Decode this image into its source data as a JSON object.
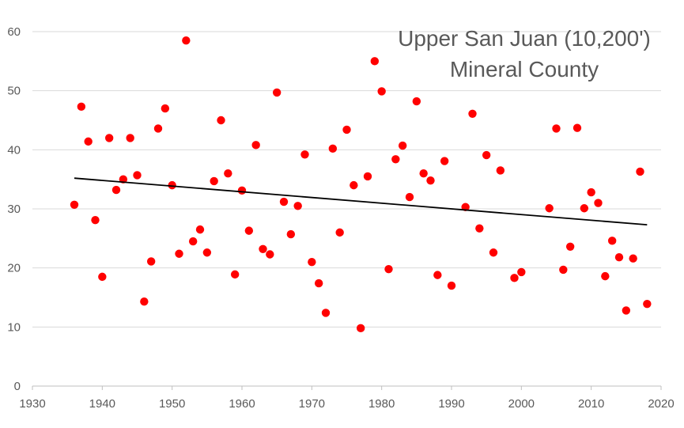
{
  "chart_data": {
    "type": "scatter",
    "title_lines": [
      "Upper San Juan (10,200')",
      "Mineral County"
    ],
    "xlabel": "",
    "ylabel": "",
    "xlim": [
      1930,
      2020
    ],
    "ylim": [
      0,
      60
    ],
    "xticks": [
      1930,
      1940,
      1950,
      1960,
      1970,
      1980,
      1990,
      2000,
      2010,
      2020
    ],
    "yticks": [
      0,
      10,
      20,
      30,
      40,
      50,
      60
    ],
    "grid": "horizontal",
    "legend": "none",
    "marker_color": "#ff0000",
    "trendline_color": "#000000",
    "trendline": {
      "x": [
        1936,
        2018
      ],
      "y": [
        35.2,
        27.3
      ]
    },
    "series": [
      {
        "x": [
          1936,
          1937,
          1938,
          1939,
          1940,
          1941,
          1942,
          1943,
          1944,
          1945,
          1946,
          1947,
          1948,
          1949,
          1950,
          1951,
          1952,
          1953,
          1954,
          1955,
          1956,
          1957,
          1958,
          1959,
          1960,
          1961,
          1962,
          1963,
          1964,
          1965,
          1966,
          1967,
          1968,
          1969,
          1970,
          1971,
          1972,
          1973,
          1974,
          1975,
          1976,
          1977,
          1978,
          1979,
          1980,
          1981,
          1982,
          1983,
          1984,
          1985,
          1986,
          1987,
          1988,
          1989,
          1990,
          1992,
          1993,
          1994,
          1995,
          1996,
          1997,
          1999,
          2000,
          2004,
          2005,
          2006,
          2007,
          2008,
          2009,
          2010,
          2011,
          2012,
          2013,
          2014,
          2015,
          2016,
          2017,
          2018
        ],
        "y": [
          30.7,
          47.3,
          41.4,
          28.1,
          18.5,
          42.0,
          33.2,
          35.0,
          42.0,
          35.7,
          14.3,
          21.1,
          43.6,
          47.0,
          34.0,
          22.4,
          58.5,
          24.5,
          26.5,
          22.6,
          34.7,
          45.0,
          36.0,
          18.9,
          33.1,
          26.3,
          40.8,
          23.2,
          22.3,
          49.7,
          31.2,
          25.7,
          30.5,
          39.2,
          21.0,
          17.4,
          12.4,
          40.2,
          26.0,
          43.4,
          34.0,
          9.8,
          35.5,
          55.0,
          49.9,
          19.8,
          38.4,
          40.7,
          32.0,
          48.2,
          36.0,
          34.8,
          18.8,
          38.1,
          17.0,
          30.3,
          46.1,
          26.7,
          39.1,
          22.6,
          36.5,
          18.3,
          19.3,
          30.1,
          43.6,
          19.7,
          23.6,
          43.7,
          30.1,
          32.8,
          31.0,
          18.6,
          24.6,
          21.8,
          12.8,
          21.6,
          36.3,
          13.9
        ]
      }
    ]
  }
}
